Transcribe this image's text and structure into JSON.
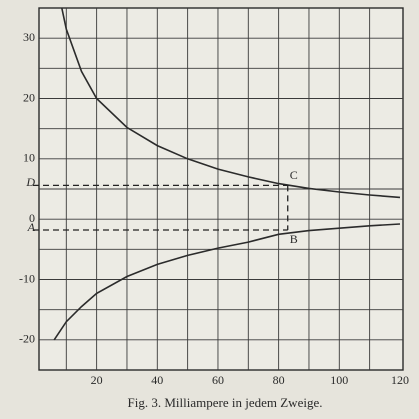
{
  "chart_data": {
    "type": "line",
    "caption": "Fig. 3.   Milliampere in jedem Zweige.",
    "xlim": [
      1,
      121
    ],
    "ylim": [
      -25,
      35
    ],
    "xticks": [
      20,
      40,
      60,
      80,
      100,
      120
    ],
    "yticks": [
      -20,
      -10,
      0,
      10,
      20,
      30
    ],
    "xgrid": [
      10,
      20,
      30,
      40,
      50,
      60,
      70,
      80,
      90,
      100,
      110
    ],
    "ygrid": [
      -20,
      -15,
      -10,
      -5,
      0,
      5,
      10,
      15,
      20,
      25,
      30
    ],
    "series": [
      {
        "color": "#2b2b2b",
        "x": [
          8.5,
          10,
          15,
          20,
          30,
          40,
          50,
          60,
          70,
          80,
          90,
          100,
          110,
          120
        ],
        "values": [
          35,
          31.5,
          24.5,
          20,
          15.2,
          12.2,
          10,
          8.3,
          7,
          5.9,
          5.1,
          4.5,
          4,
          3.6
        ]
      },
      {
        "color": "#2b2b2b",
        "x": [
          6,
          10,
          15,
          20,
          30,
          40,
          50,
          60,
          70,
          80,
          90,
          100,
          110,
          120
        ],
        "values": [
          -20,
          -17,
          -14.5,
          -12.3,
          -9.5,
          -7.5,
          -6,
          -4.8,
          -3.8,
          -2.5,
          -1.9,
          -1.5,
          -1.1,
          -0.8
        ]
      }
    ],
    "markers": [
      {
        "label_left": "D",
        "label_point": "C",
        "x": 83,
        "y": 5.6
      },
      {
        "label_left": "A",
        "label_point": "B",
        "x": 83,
        "y": -1.8
      }
    ]
  }
}
